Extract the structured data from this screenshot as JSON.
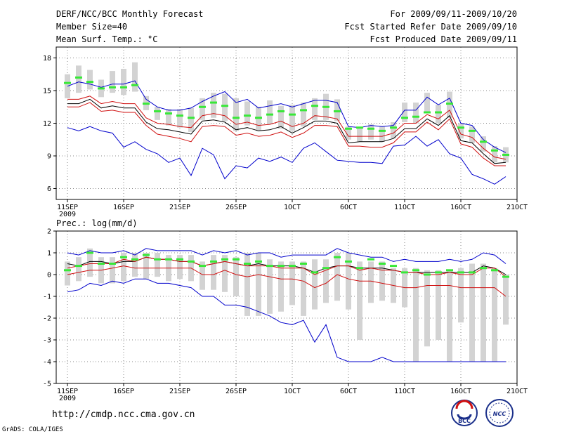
{
  "header": {
    "title": "DERF/NCC/BCC Monthly Forecast",
    "member_size": "Member Size=40",
    "variable_label": "Mean Surf. Temp.: °C",
    "period": "For 2009/09/11-2009/10/20",
    "started": "Fcst Started Refer Date 2009/09/10",
    "produced": "Fcst Produced Date 2009/09/11"
  },
  "lower_label": "Prec.: log(mm/d)",
  "footer": {
    "url": "http://cmdp.ncc.cma.gov.cn",
    "credit": "GrADS: COLA/IGES",
    "logo_left": "BCC",
    "logo_right": "NCC"
  },
  "colors": {
    "box": "#d3d3d3",
    "green": "#38e838",
    "black": "#000000",
    "red": "#d01010",
    "blue": "#0000cc",
    "grid": "#888888"
  },
  "x_ticks": [
    {
      "day": 1,
      "label": "11SEP",
      "sub": "2009"
    },
    {
      "day": 6,
      "label": "16SEP"
    },
    {
      "day": 11,
      "label": "21SEP"
    },
    {
      "day": 16,
      "label": "26SEP"
    },
    {
      "day": 21,
      "label": "1OCT"
    },
    {
      "day": 26,
      "label": "6OCT"
    },
    {
      "day": 31,
      "label": "11OCT"
    },
    {
      "day": 36,
      "label": "16OCT"
    },
    {
      "day": 41,
      "label": "21OCT"
    }
  ],
  "chart_data": [
    {
      "type": "line",
      "title": "Mean Surf. Temp.: °C",
      "ylim": [
        5,
        19
      ],
      "yticks": [
        6,
        9,
        12,
        15,
        18
      ],
      "xlim": [
        0,
        41
      ],
      "x": [
        1,
        2,
        3,
        4,
        5,
        6,
        7,
        8,
        9,
        10,
        11,
        12,
        13,
        14,
        15,
        16,
        17,
        18,
        19,
        20,
        21,
        22,
        23,
        24,
        25,
        26,
        27,
        28,
        29,
        30,
        31,
        32,
        33,
        34,
        35,
        36,
        37,
        38,
        39,
        40
      ],
      "box_low": [
        14.3,
        14.8,
        15.1,
        14.4,
        14.8,
        14.6,
        14.9,
        13.2,
        12.3,
        11.8,
        11.6,
        11.2,
        12.3,
        12.5,
        12.2,
        11.3,
        11.8,
        11.3,
        11.9,
        11.5,
        11.3,
        11.7,
        12.3,
        12.3,
        12.2,
        10.5,
        10.3,
        10.5,
        10.3,
        10.6,
        12.1,
        12.0,
        13.0,
        12.0,
        12.5,
        10.6,
        10.2,
        9.4,
        8.4,
        8.4
      ],
      "box_high": [
        16.5,
        17.3,
        16.9,
        16.0,
        16.8,
        17.0,
        17.6,
        14.5,
        13.5,
        13.3,
        13.3,
        13.4,
        14.3,
        14.8,
        14.7,
        14.3,
        14.0,
        13.5,
        14.1,
        13.6,
        13.7,
        13.9,
        14.3,
        14.7,
        14.2,
        11.7,
        11.6,
        11.9,
        11.7,
        12.1,
        13.9,
        13.9,
        14.8,
        13.7,
        14.9,
        12.0,
        11.7,
        10.8,
        9.9,
        9.8
      ],
      "green": [
        15.7,
        16.2,
        15.8,
        15.2,
        15.3,
        15.3,
        15.5,
        13.8,
        13.1,
        12.9,
        12.7,
        12.5,
        13.5,
        13.9,
        13.6,
        12.5,
        12.7,
        12.5,
        12.8,
        13.1,
        12.8,
        13.2,
        13.6,
        13.5,
        13.1,
        11.5,
        11.6,
        11.5,
        11.3,
        11.6,
        12.5,
        12.6,
        13.0,
        13.0,
        13.8,
        11.6,
        11.3,
        10.3,
        9.5,
        9.1
      ],
      "series": [
        {
          "name": "blue_upper",
          "color": "#0000cc",
          "values": [
            15.4,
            15.8,
            15.6,
            15.3,
            15.6,
            15.6,
            15.9,
            14.2,
            13.5,
            13.2,
            13.2,
            13.4,
            14.0,
            14.5,
            14.9,
            13.9,
            14.2,
            13.4,
            13.6,
            13.8,
            13.5,
            13.8,
            14.1,
            14.1,
            13.9,
            11.7,
            11.6,
            11.8,
            11.7,
            11.8,
            13.2,
            13.2,
            14.4,
            13.7,
            14.3,
            12.0,
            11.8,
            10.5,
            9.8,
            9.3
          ]
        },
        {
          "name": "red_upper",
          "color": "#d01010",
          "values": [
            14.2,
            14.2,
            14.5,
            13.8,
            14.0,
            13.8,
            13.8,
            12.5,
            12.0,
            11.9,
            11.7,
            11.6,
            12.7,
            12.9,
            12.7,
            11.9,
            12.1,
            11.8,
            11.9,
            12.2,
            11.7,
            12.0,
            12.7,
            12.6,
            12.4,
            10.8,
            10.8,
            10.8,
            10.8,
            11.1,
            12.0,
            12.0,
            12.8,
            12.4,
            13.2,
            11.0,
            10.7,
            9.7,
            8.9,
            8.7
          ]
        },
        {
          "name": "black_mean",
          "color": "#000000",
          "values": [
            13.8,
            13.8,
            14.2,
            13.4,
            13.6,
            13.4,
            13.4,
            12.1,
            11.5,
            11.4,
            11.2,
            11.0,
            12.2,
            12.3,
            12.1,
            11.4,
            11.6,
            11.3,
            11.4,
            11.7,
            11.1,
            11.6,
            12.2,
            12.2,
            12.0,
            10.2,
            10.3,
            10.3,
            10.3,
            10.6,
            11.5,
            11.5,
            12.4,
            11.8,
            12.7,
            10.4,
            10.2,
            9.2,
            8.3,
            8.4
          ]
        },
        {
          "name": "red_lower",
          "color": "#d01010",
          "values": [
            13.5,
            13.5,
            13.9,
            13.1,
            13.2,
            13.0,
            13.0,
            11.8,
            11.0,
            10.8,
            10.6,
            10.3,
            11.7,
            11.8,
            11.7,
            10.9,
            11.1,
            10.8,
            10.9,
            11.2,
            10.7,
            11.1,
            11.8,
            11.8,
            11.7,
            9.9,
            9.9,
            9.8,
            9.8,
            10.2,
            11.2,
            11.2,
            12.1,
            11.4,
            12.4,
            10.1,
            9.8,
            8.8,
            8.1,
            8.1
          ]
        },
        {
          "name": "blue_lower",
          "color": "#0000cc",
          "values": [
            11.6,
            11.3,
            11.7,
            11.3,
            11.1,
            9.8,
            10.3,
            9.6,
            9.2,
            8.4,
            8.8,
            7.2,
            9.7,
            9.1,
            6.9,
            8.1,
            7.9,
            8.8,
            8.5,
            8.9,
            8.4,
            9.7,
            10.2,
            9.4,
            8.6,
            8.5,
            8.4,
            8.4,
            8.3,
            9.9,
            10.0,
            10.8,
            9.9,
            10.5,
            9.2,
            8.8,
            7.3,
            6.9,
            6.4,
            7.1
          ]
        }
      ]
    },
    {
      "type": "line",
      "title": "Prec.: log(mm/d)",
      "ylim": [
        -5,
        2
      ],
      "yticks": [
        -5,
        -4,
        -3,
        -2,
        -1,
        0,
        1,
        2
      ],
      "xlim": [
        0,
        41
      ],
      "x": [
        1,
        2,
        3,
        4,
        5,
        6,
        7,
        8,
        9,
        10,
        11,
        12,
        13,
        14,
        15,
        16,
        17,
        18,
        19,
        20,
        21,
        22,
        23,
        24,
        25,
        26,
        27,
        28,
        29,
        30,
        31,
        32,
        33,
        34,
        35,
        36,
        37,
        38,
        39,
        40
      ],
      "box_low": [
        -0.5,
        -0.3,
        -0.1,
        -0.4,
        -0.4,
        -0.3,
        -0.1,
        -0.2,
        -0.1,
        -0.3,
        -0.2,
        -0.3,
        -0.7,
        -0.7,
        -0.8,
        -1.0,
        -1.9,
        -1.9,
        -1.8,
        -1.7,
        -1.4,
        -1.9,
        -1.6,
        -1.3,
        -1.2,
        -1.6,
        -3.0,
        -1.3,
        -1.2,
        -1.3,
        -1.5,
        -4.0,
        -3.3,
        -3.0,
        -4.0,
        -2.2,
        -4.0,
        -4.0,
        -4.0,
        -2.3
      ],
      "box_high": [
        0.6,
        0.8,
        1.2,
        0.8,
        0.8,
        1.0,
        1.0,
        1.0,
        1.0,
        0.9,
        0.9,
        0.9,
        0.6,
        0.9,
        0.9,
        0.8,
        1.0,
        1.0,
        0.7,
        0.6,
        0.6,
        0.6,
        0.7,
        0.7,
        1.0,
        1.0,
        0.6,
        0.6,
        0.6,
        0.3,
        0.3,
        0.3,
        0.2,
        0.2,
        0.2,
        0.3,
        0.5,
        0.5,
        0.3,
        0.0
      ],
      "green": [
        0.2,
        0.4,
        1.0,
        0.5,
        0.5,
        0.8,
        0.7,
        0.9,
        0.7,
        0.7,
        0.7,
        0.6,
        0.4,
        0.6,
        0.7,
        0.7,
        0.5,
        0.6,
        0.4,
        0.4,
        0.4,
        0.5,
        0.1,
        0.3,
        0.8,
        0.6,
        0.3,
        0.7,
        0.5,
        0.4,
        0.1,
        0.2,
        0.0,
        0.1,
        0.2,
        0.1,
        0.1,
        0.3,
        0.2,
        -0.1
      ],
      "series": [
        {
          "name": "blue_upper",
          "color": "#0000cc",
          "values": [
            1.0,
            0.9,
            1.1,
            1.0,
            1.0,
            1.1,
            0.9,
            1.2,
            1.1,
            1.1,
            1.1,
            1.1,
            0.9,
            1.1,
            1.0,
            1.1,
            0.9,
            1.0,
            1.0,
            0.8,
            0.9,
            0.9,
            0.9,
            0.9,
            1.2,
            1.0,
            0.9,
            0.8,
            0.8,
            0.6,
            0.7,
            0.6,
            0.6,
            0.6,
            0.7,
            0.6,
            0.7,
            1.0,
            0.9,
            0.5
          ]
        },
        {
          "name": "black_mean",
          "color": "#000000",
          "values": [
            0.5,
            0.4,
            0.6,
            0.6,
            0.5,
            0.6,
            0.6,
            0.8,
            0.7,
            0.7,
            0.6,
            0.6,
            0.4,
            0.5,
            0.6,
            0.5,
            0.4,
            0.5,
            0.4,
            0.4,
            0.4,
            0.3,
            0.1,
            0.3,
            0.4,
            0.4,
            0.3,
            0.3,
            0.3,
            0.2,
            0.1,
            0.1,
            0.1,
            0.1,
            0.1,
            0.1,
            0.1,
            0.4,
            0.3,
            0.0
          ]
        },
        {
          "name": "red_upper",
          "color": "#d01010",
          "values": [
            0.3,
            0.4,
            0.5,
            0.5,
            0.5,
            0.7,
            0.6,
            0.8,
            0.7,
            0.7,
            0.6,
            0.6,
            0.4,
            0.5,
            0.6,
            0.5,
            0.4,
            0.4,
            0.4,
            0.3,
            0.3,
            0.3,
            0.0,
            0.2,
            0.4,
            0.4,
            0.2,
            0.3,
            0.2,
            0.2,
            0.1,
            0.1,
            0.0,
            0.0,
            0.1,
            0.0,
            0.0,
            0.3,
            0.3,
            -0.1
          ]
        },
        {
          "name": "red_lower",
          "color": "#d01010",
          "values": [
            0.0,
            0.1,
            0.2,
            0.2,
            0.3,
            0.4,
            0.3,
            0.3,
            0.3,
            0.3,
            0.3,
            0.3,
            0.0,
            0.0,
            0.2,
            0.0,
            -0.1,
            0.0,
            -0.1,
            -0.2,
            -0.2,
            -0.3,
            -0.6,
            -0.4,
            0.0,
            -0.2,
            -0.3,
            -0.3,
            -0.4,
            -0.5,
            -0.6,
            -0.6,
            -0.5,
            -0.5,
            -0.5,
            -0.6,
            -0.6,
            -0.6,
            -0.6,
            -1.0
          ]
        },
        {
          "name": "blue_lower",
          "color": "#0000cc",
          "values": [
            -0.8,
            -0.7,
            -0.4,
            -0.5,
            -0.3,
            -0.4,
            -0.2,
            -0.2,
            -0.4,
            -0.4,
            -0.5,
            -0.6,
            -1.0,
            -1.0,
            -1.4,
            -1.4,
            -1.5,
            -1.7,
            -1.9,
            -2.2,
            -2.3,
            -2.1,
            -3.1,
            -2.3,
            -3.8,
            -4.0,
            -4.0,
            -4.0,
            -3.8,
            -4.0,
            -4.0,
            -4.0,
            -4.0,
            -4.0,
            -4.0,
            -4.0,
            -4.0,
            -4.0,
            -4.0,
            -4.0
          ]
        }
      ]
    }
  ]
}
